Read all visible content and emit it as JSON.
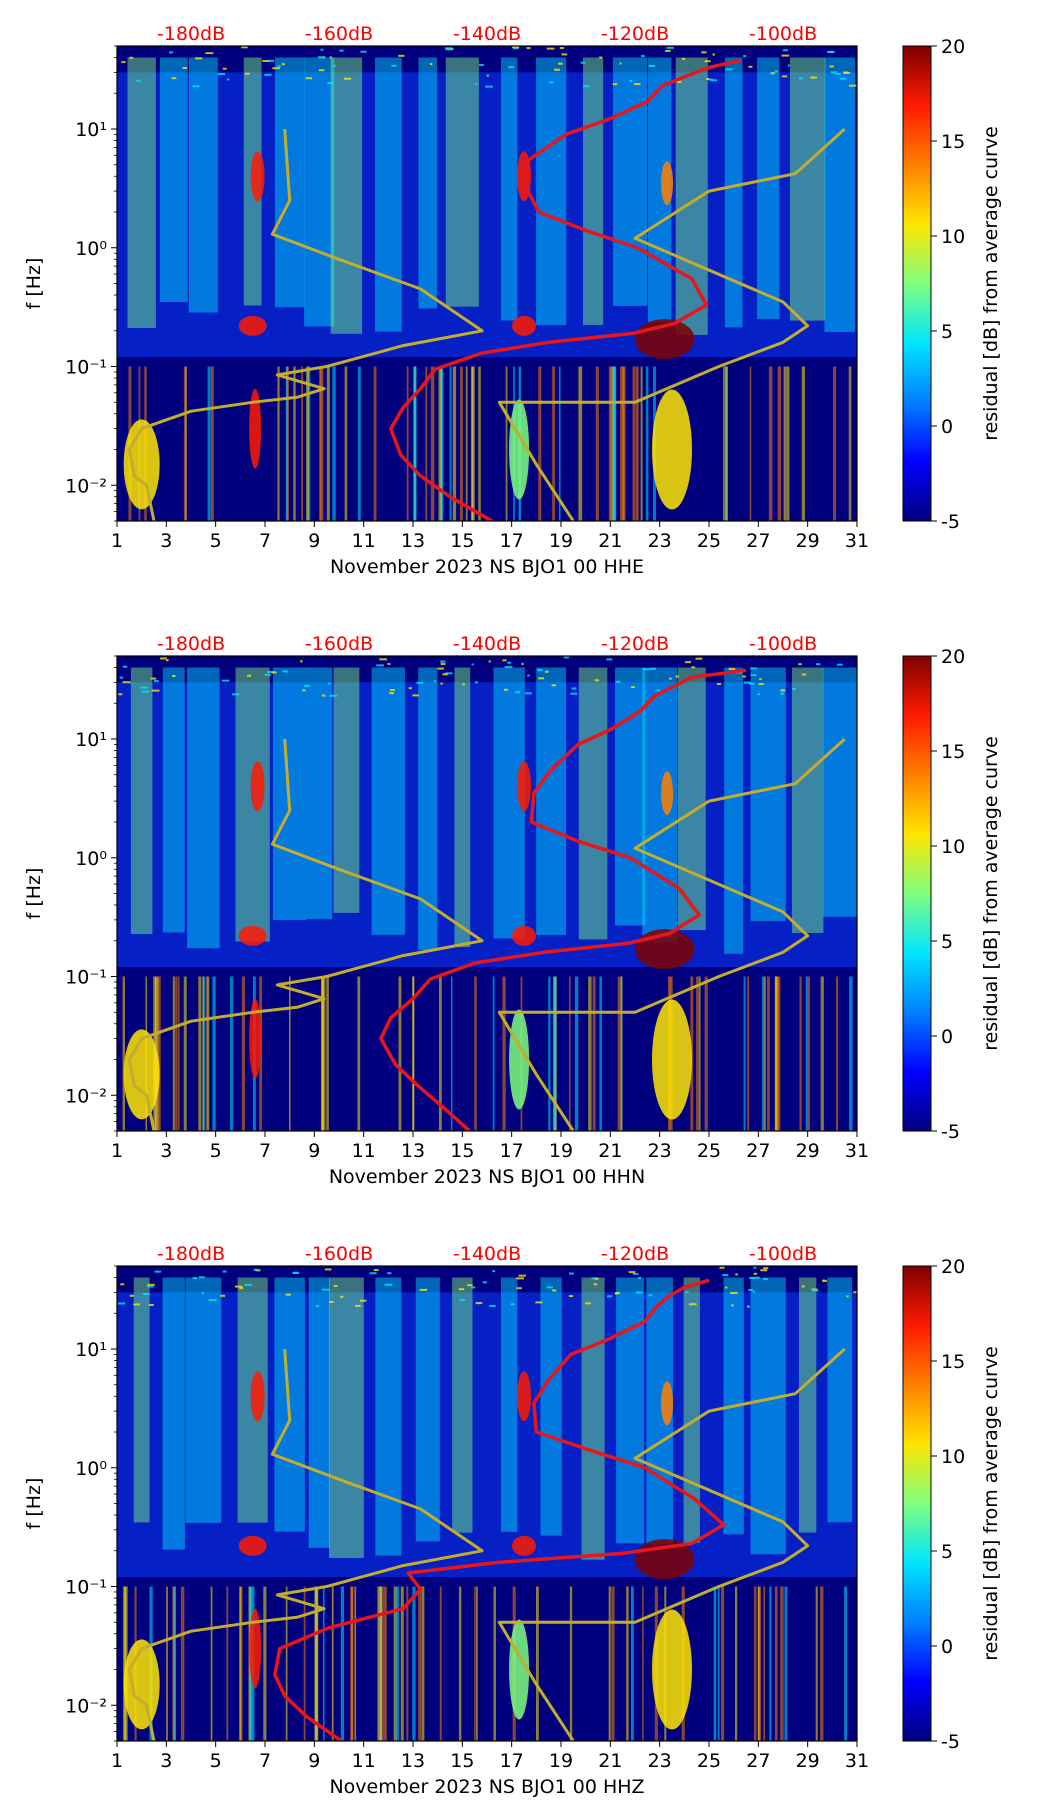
{
  "colors": {
    "average_curve": "#e8161b",
    "reference_curve": "#c3ad2d",
    "db_label": "#ff0000",
    "colormap": [
      "#00007f",
      "#0000ff",
      "#007fff",
      "#00e5ff",
      "#7fff7f",
      "#ffe500",
      "#ff7f00",
      "#ff1a00",
      "#7f0000"
    ]
  },
  "chart_data": [
    {
      "type": "heatmap",
      "title": "",
      "xlabel": "November 2023 NS BJO1 00 HHE",
      "ylabel": "f [Hz]",
      "xlim": [
        1,
        31
      ],
      "x_ticks": [
        1,
        3,
        5,
        7,
        9,
        11,
        13,
        15,
        17,
        19,
        21,
        23,
        25,
        27,
        29,
        31
      ],
      "y_scale": "log",
      "ylim": [
        0.005,
        50
      ],
      "y_tick_labels": [
        "10⁻²",
        "10⁻¹",
        "10⁰",
        "10¹"
      ],
      "y_tick_values": [
        0.01,
        0.1,
        1,
        10
      ],
      "db_axis_labels": [
        "-180dB",
        "-160dB",
        "-140dB",
        "-120dB",
        "-100dB"
      ],
      "db_axis_day_positions": [
        4,
        10,
        16,
        22,
        28
      ],
      "colorbar": {
        "label": "residual [dB] from average curve",
        "min": -5,
        "max": 20,
        "ticks": [
          20,
          15,
          10,
          5,
          0,
          -5
        ]
      },
      "average_curve": {
        "days": [
          16.2,
          14.5,
          13.3,
          12.5,
          12.1,
          12.6,
          13.3,
          13.9,
          15.8,
          18.5,
          21.9,
          23.6,
          24.9,
          24.3,
          22.1,
          20.0,
          18.1,
          17.5,
          17.7,
          19.2,
          20.9,
          22.5,
          23.1,
          24.1,
          25.0,
          26.3
        ],
        "freqs": [
          0.005,
          0.008,
          0.012,
          0.018,
          0.03,
          0.045,
          0.065,
          0.095,
          0.13,
          0.16,
          0.19,
          0.23,
          0.33,
          0.55,
          1.0,
          1.4,
          2.0,
          3.5,
          5.5,
          9.0,
          12.0,
          17.0,
          23.0,
          28.0,
          33.0,
          38.0
        ]
      },
      "reference_curve": {
        "days": [
          2.5,
          2.2,
          1.7,
          1.5,
          2.0,
          4.0,
          6.5,
          8.3,
          9.4,
          7.5,
          9.5,
          12.6,
          15.8,
          13.3,
          10.0,
          7.3,
          8.0,
          7.8
        ],
        "freqs": [
          0.005,
          0.01,
          0.012,
          0.02,
          0.03,
          0.042,
          0.05,
          0.055,
          0.065,
          0.085,
          0.1,
          0.15,
          0.2,
          0.45,
          0.8,
          1.3,
          2.5,
          10.0
        ]
      },
      "reference_curve_2": {
        "days": [
          19.5,
          18.0,
          16.5,
          22.0,
          25.4,
          28.0,
          29.0,
          28.0,
          22.0,
          25.0,
          28.5,
          30.5
        ],
        "freqs": [
          0.005,
          0.015,
          0.05,
          0.05,
          0.1,
          0.16,
          0.22,
          0.35,
          1.2,
          3.0,
          4.2,
          10.0
        ]
      }
    },
    {
      "type": "heatmap",
      "title": "",
      "xlabel": "November 2023 NS BJO1 00 HHN",
      "ylabel": "f [Hz]",
      "xlim": [
        1,
        31
      ],
      "x_ticks": [
        1,
        3,
        5,
        7,
        9,
        11,
        13,
        15,
        17,
        19,
        21,
        23,
        25,
        27,
        29,
        31
      ],
      "y_scale": "log",
      "ylim": [
        0.005,
        50
      ],
      "y_tick_labels": [
        "10⁻²",
        "10⁻¹",
        "10⁰",
        "10¹"
      ],
      "y_tick_values": [
        0.01,
        0.1,
        1,
        10
      ],
      "db_axis_labels": [
        "-180dB",
        "-160dB",
        "-140dB",
        "-120dB",
        "-100dB"
      ],
      "db_axis_day_positions": [
        4,
        10,
        16,
        22,
        28
      ],
      "colorbar": {
        "label": "residual [dB] from average curve",
        "min": -5,
        "max": 20,
        "ticks": [
          20,
          15,
          10,
          5,
          0,
          -5
        ]
      },
      "average_curve": {
        "days": [
          15.3,
          14.2,
          13.2,
          12.3,
          11.7,
          12.1,
          13.0,
          13.7,
          15.5,
          18.3,
          21.7,
          23.4,
          24.6,
          23.8,
          21.8,
          19.6,
          17.8,
          17.9,
          18.6,
          19.7,
          21.0,
          22.2,
          22.8,
          23.6,
          24.3,
          26.5
        ],
        "freqs": [
          0.005,
          0.008,
          0.012,
          0.018,
          0.03,
          0.045,
          0.065,
          0.095,
          0.13,
          0.16,
          0.19,
          0.23,
          0.33,
          0.55,
          1.0,
          1.4,
          2.0,
          3.5,
          5.5,
          9.0,
          12.0,
          17.0,
          23.0,
          28.0,
          33.0,
          38.0
        ]
      },
      "reference_curve": {
        "days": [
          2.5,
          2.2,
          1.7,
          1.5,
          2.0,
          4.0,
          6.5,
          8.3,
          9.4,
          7.5,
          9.5,
          12.6,
          15.8,
          13.3,
          10.0,
          7.3,
          8.0,
          7.8
        ],
        "freqs": [
          0.005,
          0.01,
          0.012,
          0.02,
          0.03,
          0.042,
          0.05,
          0.055,
          0.065,
          0.085,
          0.1,
          0.15,
          0.2,
          0.45,
          0.8,
          1.3,
          2.5,
          10.0
        ]
      },
      "reference_curve_2": {
        "days": [
          19.5,
          18.0,
          16.5,
          22.0,
          25.4,
          28.0,
          29.0,
          28.0,
          22.0,
          25.0,
          28.5,
          30.5
        ],
        "freqs": [
          0.005,
          0.015,
          0.05,
          0.05,
          0.1,
          0.16,
          0.22,
          0.35,
          1.2,
          3.0,
          4.2,
          10.0
        ]
      }
    },
    {
      "type": "heatmap",
      "title": "",
      "xlabel": "November 2023 NS BJO1 00 HHZ",
      "ylabel": "f [Hz]",
      "xlim": [
        1,
        31
      ],
      "x_ticks": [
        1,
        3,
        5,
        7,
        9,
        11,
        13,
        15,
        17,
        19,
        21,
        23,
        25,
        27,
        29,
        31
      ],
      "y_scale": "log",
      "ylim": [
        0.005,
        50
      ],
      "y_tick_labels": [
        "10⁻²",
        "10⁻¹",
        "10⁰",
        "10¹"
      ],
      "y_tick_values": [
        0.01,
        0.1,
        1,
        10
      ],
      "db_axis_labels": [
        "-180dB",
        "-160dB",
        "-140dB",
        "-120dB",
        "-100dB"
      ],
      "db_axis_day_positions": [
        4,
        10,
        16,
        22,
        28
      ],
      "colorbar": {
        "label": "residual [dB] from average curve",
        "min": -5,
        "max": 20,
        "ticks": [
          20,
          15,
          10,
          5,
          0,
          -5
        ]
      },
      "average_curve": {
        "days": [
          10.1,
          8.7,
          7.8,
          7.4,
          7.6,
          9.6,
          12.6,
          13.3,
          12.8,
          16.5,
          21.5,
          24.3,
          25.6,
          24.4,
          22.4,
          20.2,
          18.0,
          17.9,
          18.5,
          19.4,
          20.9,
          22.4,
          22.9,
          23.4,
          24.0,
          25.0
        ],
        "freqs": [
          0.005,
          0.008,
          0.012,
          0.018,
          0.03,
          0.045,
          0.065,
          0.095,
          0.13,
          0.16,
          0.19,
          0.23,
          0.33,
          0.55,
          1.0,
          1.4,
          2.0,
          3.5,
          5.5,
          9.0,
          12.0,
          17.0,
          23.0,
          28.0,
          33.0,
          38.0
        ]
      },
      "reference_curve": {
        "days": [
          2.5,
          2.2,
          1.7,
          1.5,
          2.0,
          4.0,
          6.5,
          8.3,
          9.4,
          7.5,
          9.5,
          12.6,
          15.8,
          13.3,
          10.0,
          7.3,
          8.0,
          7.8
        ],
        "freqs": [
          0.005,
          0.01,
          0.012,
          0.02,
          0.03,
          0.042,
          0.05,
          0.055,
          0.065,
          0.085,
          0.1,
          0.15,
          0.2,
          0.45,
          0.8,
          1.3,
          2.5,
          10.0
        ]
      },
      "reference_curve_2": {
        "days": [
          19.5,
          18.0,
          16.5,
          22.0,
          25.4,
          28.0,
          29.0,
          28.0,
          22.0,
          25.0,
          28.5,
          30.5
        ],
        "freqs": [
          0.005,
          0.015,
          0.05,
          0.05,
          0.1,
          0.16,
          0.22,
          0.35,
          1.2,
          3.0,
          4.2,
          10.0
        ]
      }
    }
  ]
}
